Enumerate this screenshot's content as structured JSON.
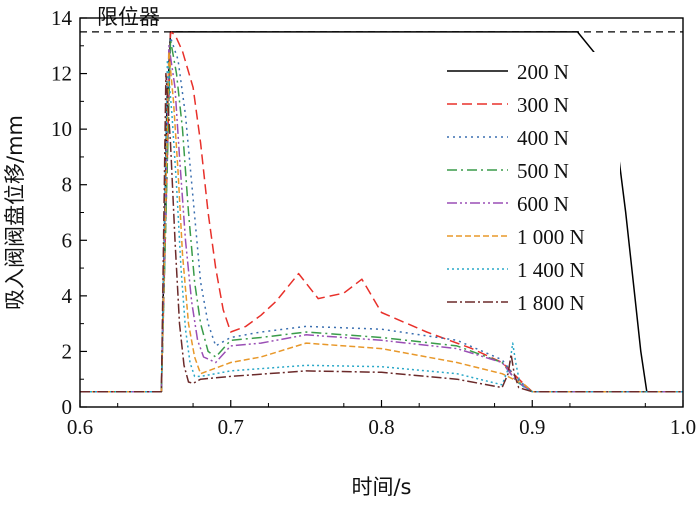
{
  "chart_data": {
    "type": "line",
    "xlabel": "时间/s",
    "ylabel": "吸入阀阀盘位移/mm",
    "xlim": [
      0.6,
      1.0
    ],
    "ylim": [
      0,
      14
    ],
    "xticks": [
      0.6,
      0.7,
      0.8,
      0.9,
      1.0
    ],
    "xtick_labels": [
      "0.6",
      "0.7",
      "0.8",
      "0.9",
      "1.0"
    ],
    "yticks": [
      0,
      2,
      4,
      6,
      8,
      10,
      12,
      14
    ],
    "ytick_labels": [
      "0",
      "2",
      "4",
      "6",
      "8",
      "10",
      "12",
      "14"
    ],
    "grid": false,
    "legend_position": "top-right",
    "limiter": {
      "label": "限位器",
      "value": 13.5,
      "style": "dashed"
    },
    "series": [
      {
        "name": "200 N",
        "color": "#000000",
        "dash": "",
        "x": [
          0.6,
          0.654,
          0.6575,
          0.66,
          0.93,
          0.945,
          0.955,
          0.962,
          0.968,
          0.972,
          0.976,
          0.978,
          1.0
        ],
        "y": [
          0.55,
          0.55,
          10.5,
          13.5,
          13.5,
          12.5,
          10.0,
          7.0,
          4.0,
          2.0,
          0.55,
          0.55,
          0.55
        ]
      },
      {
        "name": "300 N",
        "color": "#e8302a",
        "dash": "10,5",
        "x": [
          0.6,
          0.654,
          0.66,
          0.663,
          0.668,
          0.675,
          0.68,
          0.685,
          0.69,
          0.695,
          0.7,
          0.71,
          0.72,
          0.73,
          0.745,
          0.758,
          0.775,
          0.787,
          0.8,
          0.83,
          0.86,
          0.88,
          0.895,
          0.9,
          1.0
        ],
        "y": [
          0.55,
          0.55,
          13.5,
          13.4,
          12.8,
          11.5,
          9.5,
          7.0,
          5.0,
          3.5,
          2.7,
          2.9,
          3.3,
          3.8,
          4.8,
          3.9,
          4.1,
          4.6,
          3.4,
          2.7,
          2.1,
          1.6,
          0.8,
          0.55,
          0.55
        ]
      },
      {
        "name": "400 N",
        "color": "#3a6fb0",
        "dash": "2,4",
        "x": [
          0.6,
          0.654,
          0.66,
          0.665,
          0.67,
          0.675,
          0.68,
          0.685,
          0.69,
          0.7,
          0.72,
          0.75,
          0.8,
          0.85,
          0.88,
          0.89,
          0.9,
          1.0
        ],
        "y": [
          0.55,
          0.55,
          13.3,
          12.5,
          10.5,
          7.5,
          4.5,
          3.0,
          2.2,
          2.5,
          2.7,
          2.9,
          2.8,
          2.4,
          1.7,
          1.0,
          0.55,
          0.55
        ]
      },
      {
        "name": "500 N",
        "color": "#3a9c4a",
        "dash": "10,4,2,4",
        "x": [
          0.6,
          0.654,
          0.66,
          0.664,
          0.668,
          0.672,
          0.676,
          0.68,
          0.685,
          0.69,
          0.7,
          0.72,
          0.75,
          0.8,
          0.85,
          0.88,
          0.89,
          0.9,
          1.0
        ],
        "y": [
          0.55,
          0.55,
          13.2,
          12.0,
          10.0,
          7.0,
          4.5,
          3.0,
          2.0,
          1.8,
          2.4,
          2.5,
          2.7,
          2.5,
          2.2,
          1.6,
          0.9,
          0.55,
          0.55
        ]
      },
      {
        "name": "600 N",
        "color": "#9a4fb5",
        "dash": "10,3,2,3,2,3",
        "x": [
          0.6,
          0.654,
          0.659,
          0.663,
          0.666,
          0.67,
          0.674,
          0.678,
          0.682,
          0.69,
          0.7,
          0.72,
          0.75,
          0.8,
          0.85,
          0.88,
          0.89,
          0.9,
          1.0
        ],
        "y": [
          0.55,
          0.55,
          13.0,
          11.5,
          9.0,
          6.0,
          3.8,
          2.4,
          1.8,
          1.6,
          2.2,
          2.3,
          2.6,
          2.4,
          2.1,
          1.6,
          0.9,
          0.55,
          0.55
        ]
      },
      {
        "name": "1 000 N",
        "color": "#e8982a",
        "dash": "6,3",
        "x": [
          0.6,
          0.654,
          0.659,
          0.662,
          0.665,
          0.668,
          0.672,
          0.676,
          0.68,
          0.69,
          0.7,
          0.72,
          0.75,
          0.8,
          0.85,
          0.88,
          0.895,
          0.9,
          1.0
        ],
        "y": [
          0.55,
          0.55,
          12.8,
          11.0,
          8.5,
          5.5,
          3.0,
          1.8,
          1.2,
          1.4,
          1.6,
          1.8,
          2.3,
          2.1,
          1.6,
          1.2,
          0.8,
          0.55,
          0.55
        ]
      },
      {
        "name": "1 400 N",
        "color": "#2aa8c8",
        "dash": "2,3",
        "x": [
          0.6,
          0.654,
          0.658,
          0.661,
          0.664,
          0.667,
          0.67,
          0.673,
          0.676,
          0.68,
          0.7,
          0.75,
          0.8,
          0.85,
          0.88,
          0.885,
          0.887,
          0.889,
          0.892,
          0.9,
          1.0
        ],
        "y": [
          0.55,
          0.55,
          12.5,
          10.5,
          8.0,
          5.0,
          2.8,
          1.6,
          1.1,
          1.1,
          1.3,
          1.5,
          1.45,
          1.2,
          0.8,
          1.5,
          2.3,
          1.6,
          0.8,
          0.55,
          0.55
        ]
      },
      {
        "name": "1 800 N",
        "color": "#6b2a2a",
        "dash": "10,3,2,3",
        "x": [
          0.6,
          0.654,
          0.657,
          0.66,
          0.663,
          0.666,
          0.669,
          0.672,
          0.675,
          0.68,
          0.7,
          0.75,
          0.8,
          0.85,
          0.88,
          0.884,
          0.886,
          0.888,
          0.891,
          0.9,
          1.0
        ],
        "y": [
          0.55,
          0.55,
          12.0,
          9.5,
          6.0,
          3.0,
          1.5,
          0.9,
          0.85,
          1.0,
          1.1,
          1.3,
          1.25,
          1.0,
          0.7,
          1.2,
          1.9,
          1.2,
          0.7,
          0.55,
          0.55
        ]
      }
    ]
  }
}
